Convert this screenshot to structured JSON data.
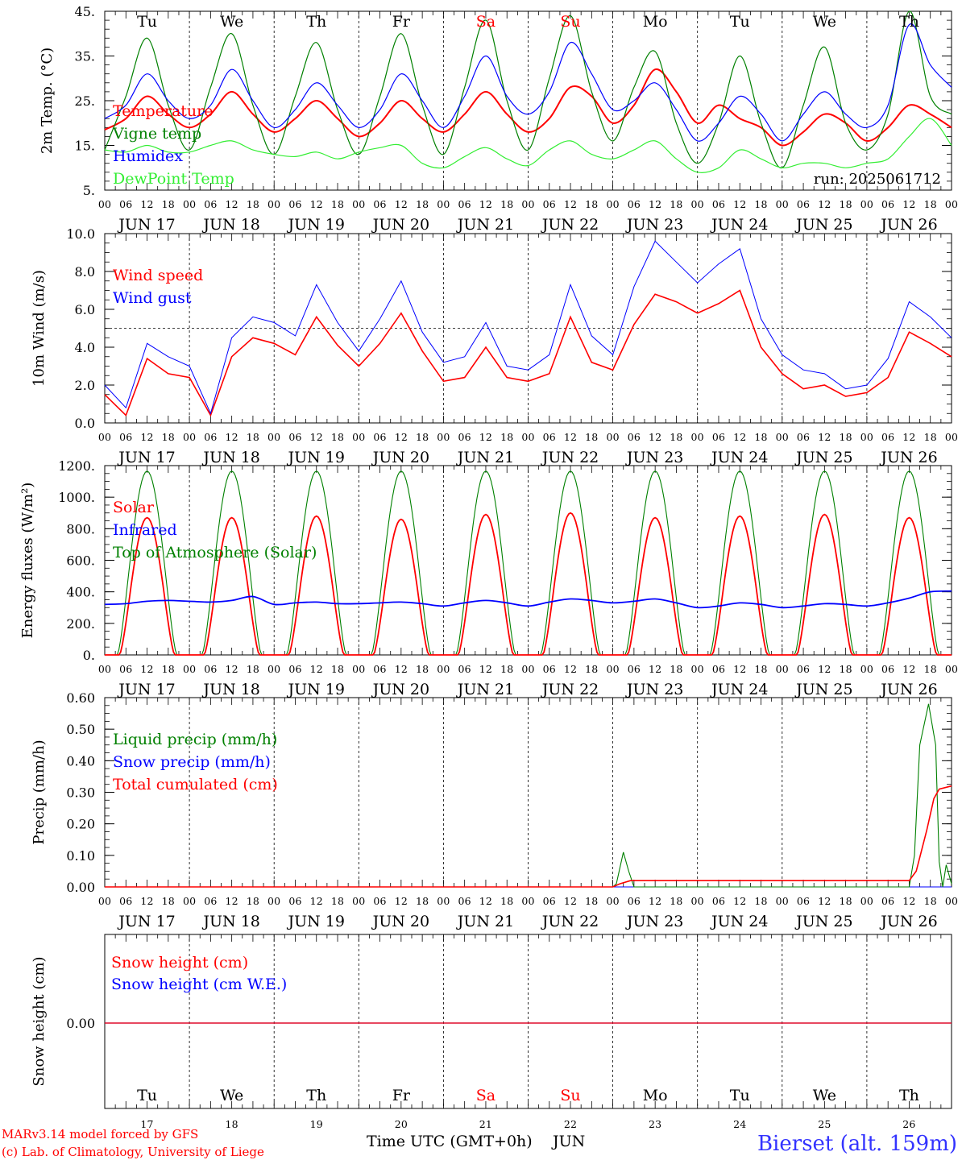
{
  "run_label": "run: 2025061712",
  "days": [
    "Tu",
    "We",
    "Th",
    "Fr",
    "Sa",
    "Su",
    "Mo",
    "Tu",
    "We",
    "Th"
  ],
  "weekend_color": "#ff0000",
  "weekend_index": [
    4,
    5
  ],
  "date_labels": [
    "JUN 17",
    "JUN 18",
    "JUN 19",
    "JUN 20",
    "JUN 21",
    "JUN 22",
    "JUN 23",
    "JUN 24",
    "JUN 25",
    "JUN 26"
  ],
  "hour_ticks": [
    "00",
    "06",
    "12",
    "18"
  ],
  "bottom_day_numbers": [
    "17",
    "18",
    "19",
    "20",
    "21",
    "22",
    "23",
    "24",
    "25",
    "26"
  ],
  "footer": {
    "model": "MARv3.14 model forced by GFS",
    "lab": "(c) Lab. of Climatology, University of Liege",
    "xlabel": "Time UTC (GMT+0h)",
    "month": "JUN",
    "station": "Bierset (alt. 159m)"
  },
  "colors": {
    "red": "#ff0000",
    "blue": "#0000ff",
    "green": "#008000",
    "lightgreen": "#33ee33",
    "station": "#3333ff"
  },
  "chart_data": [
    {
      "type": "line",
      "ylabel": "2m Temp. (°C)",
      "ylim": [
        5,
        45
      ],
      "yticks": [
        "45.",
        "35.",
        "25.",
        "15.",
        "5."
      ],
      "x_hours": [
        0,
        6,
        12,
        18,
        24,
        30,
        36,
        42,
        48,
        54,
        60,
        66,
        72,
        78,
        84,
        90,
        96,
        102,
        108,
        114,
        120,
        126,
        132,
        138,
        144,
        150,
        156,
        162,
        168,
        174,
        180,
        186,
        192,
        198,
        204,
        210,
        216,
        222,
        228,
        234,
        240
      ],
      "series": [
        {
          "name": "Temperature",
          "color": "#ff0000",
          "values": [
            18.5,
            21,
            26,
            22,
            19,
            22,
            27,
            22,
            18,
            21,
            25,
            21,
            17,
            20,
            25,
            21,
            18,
            22,
            27,
            22,
            18,
            21,
            28,
            26,
            20,
            24,
            32,
            27,
            20,
            24,
            21,
            19,
            15,
            18,
            22,
            20,
            16,
            19,
            24,
            22,
            19
          ]
        },
        {
          "name": "Vigne temp",
          "color": "#008000",
          "values": [
            14,
            26,
            39,
            24,
            14,
            28,
            40,
            24,
            13,
            26,
            38,
            23,
            13,
            26,
            40,
            24,
            13,
            28,
            43,
            25,
            14,
            30,
            44,
            27,
            16,
            28,
            36,
            20,
            11,
            20,
            35,
            20,
            10,
            24,
            37,
            20,
            14,
            22,
            45,
            26,
            22
          ]
        },
        {
          "name": "Humidex",
          "color": "#0000ff",
          "values": [
            21,
            24,
            31,
            25,
            21,
            24,
            32,
            25,
            19,
            23,
            29,
            24,
            19,
            23,
            31,
            25,
            19,
            26,
            35,
            26,
            22,
            27,
            38,
            31,
            23,
            25,
            29,
            23,
            16,
            20,
            26,
            22,
            16,
            22,
            27,
            22,
            19,
            24,
            42,
            33,
            28
          ]
        },
        {
          "name": "DewPoint Temp",
          "color": "#33ee33",
          "values": [
            14,
            13.5,
            15,
            13.5,
            13.5,
            15,
            16,
            14,
            13,
            12.5,
            13.5,
            12,
            13.5,
            14.5,
            15,
            11,
            10,
            12.5,
            14.5,
            12,
            10.5,
            14,
            16,
            13,
            12,
            14,
            16,
            12,
            9,
            10,
            14,
            12,
            10,
            11,
            11,
            10,
            11,
            12,
            17,
            21,
            15
          ]
        }
      ]
    },
    {
      "type": "line",
      "ylabel": "10m Wind (m/s)",
      "ylim": [
        0,
        10
      ],
      "yticks": [
        "10.0",
        "8.0",
        "6.0",
        "4.0",
        "2.0",
        "0.0"
      ],
      "reference_line": 5,
      "x_hours": [
        0,
        6,
        12,
        18,
        24,
        30,
        36,
        42,
        48,
        54,
        60,
        66,
        72,
        78,
        84,
        90,
        96,
        102,
        108,
        114,
        120,
        126,
        132,
        138,
        144,
        150,
        156,
        162,
        168,
        174,
        180,
        186,
        192,
        198,
        204,
        210,
        216,
        222,
        228,
        234,
        240
      ],
      "series": [
        {
          "name": "Wind speed",
          "color": "#ff0000",
          "values": [
            1.5,
            0.4,
            3.4,
            2.6,
            2.4,
            0.4,
            3.5,
            4.5,
            4.2,
            3.6,
            5.6,
            4.1,
            3.0,
            4.2,
            5.8,
            3.8,
            2.2,
            2.4,
            4.0,
            2.4,
            2.2,
            2.6,
            5.6,
            3.2,
            2.8,
            5.2,
            6.8,
            6.4,
            5.8,
            6.3,
            7.0,
            4.0,
            2.6,
            1.8,
            2.0,
            1.4,
            1.6,
            2.4,
            4.8,
            4.2,
            3.5
          ]
        },
        {
          "name": "Wind gust",
          "color": "#0000ff",
          "values": [
            2.0,
            0.8,
            4.2,
            3.5,
            3.0,
            0.5,
            4.5,
            5.6,
            5.3,
            4.6,
            7.3,
            5.3,
            3.8,
            5.5,
            7.5,
            4.8,
            3.2,
            3.5,
            5.3,
            3.0,
            2.8,
            3.6,
            7.3,
            4.6,
            3.6,
            7.2,
            9.6,
            8.5,
            7.4,
            8.4,
            9.2,
            5.5,
            3.6,
            2.8,
            2.6,
            1.8,
            2.0,
            3.4,
            6.4,
            5.6,
            4.5
          ]
        }
      ]
    },
    {
      "type": "line",
      "ylabel": "Energy fluxes (W/m²)",
      "ylim": [
        0,
        1200
      ],
      "yticks": [
        "1200.",
        "1000.",
        "800.",
        "600.",
        "400.",
        "200.",
        "0."
      ],
      "x_hours": [
        0,
        6,
        12,
        18,
        24,
        30,
        36,
        42,
        48,
        54,
        60,
        66,
        72,
        78,
        84,
        90,
        96,
        102,
        108,
        114,
        120,
        126,
        132,
        138,
        144,
        150,
        156,
        162,
        168,
        174,
        180,
        186,
        192,
        198,
        204,
        210,
        216,
        222,
        228,
        234,
        240
      ],
      "series": [
        {
          "name": "Solar",
          "color": "#ff0000",
          "peaks": [
            870,
            870,
            880,
            860,
            890,
            900,
            870,
            880,
            890,
            870
          ]
        },
        {
          "name": "Infrared",
          "color": "#0000ff",
          "values": [
            320,
            325,
            340,
            345,
            340,
            335,
            345,
            370,
            320,
            330,
            335,
            325,
            325,
            330,
            335,
            325,
            310,
            330,
            345,
            330,
            310,
            335,
            355,
            345,
            330,
            340,
            355,
            330,
            300,
            310,
            330,
            320,
            300,
            310,
            325,
            320,
            310,
            330,
            360,
            400,
            405
          ]
        },
        {
          "name": "Top of Atmosphere (Solar)",
          "color": "#008000",
          "peaks": [
            1165,
            1165,
            1165,
            1165,
            1165,
            1165,
            1165,
            1165,
            1165,
            1165
          ]
        }
      ]
    },
    {
      "type": "line",
      "ylabel": "Precip (mm/h)",
      "ylim": [
        0,
        0.6
      ],
      "yticks": [
        "0.60",
        "0.50",
        "0.40",
        "0.30",
        "0.20",
        "0.10",
        "0.00"
      ],
      "series": [
        {
          "name": "Liquid precip (mm/h)",
          "color": "#008000",
          "points": [
            [
              0,
              0
            ],
            [
              144,
              0
            ],
            [
              145,
              0.01
            ],
            [
              147,
              0.11
            ],
            [
              148.5,
              0.05
            ],
            [
              150,
              0
            ],
            [
              228,
              0
            ],
            [
              229.5,
              0.1
            ],
            [
              231,
              0.45
            ],
            [
              233.5,
              0.58
            ],
            [
              235.5,
              0.45
            ],
            [
              236.5,
              0.08
            ],
            [
              237.5,
              0.0
            ],
            [
              238.5,
              0.07
            ],
            [
              240,
              0.01
            ]
          ]
        },
        {
          "name": "Snow precip (mm/h)",
          "color": "#0000ff",
          "points": [
            [
              0,
              0
            ],
            [
              240,
              0
            ]
          ]
        },
        {
          "name": "Total cumulated (cm)",
          "color": "#ff0000",
          "points": [
            [
              0,
              0
            ],
            [
              144,
              0
            ],
            [
              146,
              0.01
            ],
            [
              149,
              0.02
            ],
            [
              228,
              0.02
            ],
            [
              230,
              0.05
            ],
            [
              233,
              0.18
            ],
            [
              235,
              0.28
            ],
            [
              236.5,
              0.31
            ],
            [
              240,
              0.32
            ]
          ]
        }
      ]
    },
    {
      "type": "line",
      "ylabel": "Snow height (cm)",
      "ytick": "0.00",
      "series": [
        {
          "name": "Snow height (cm)",
          "color": "#ff0000",
          "values": [
            0,
            0
          ]
        },
        {
          "name": "Snow height (cm W.E.)",
          "color": "#0000ff",
          "values": [
            0,
            0
          ]
        }
      ]
    }
  ]
}
